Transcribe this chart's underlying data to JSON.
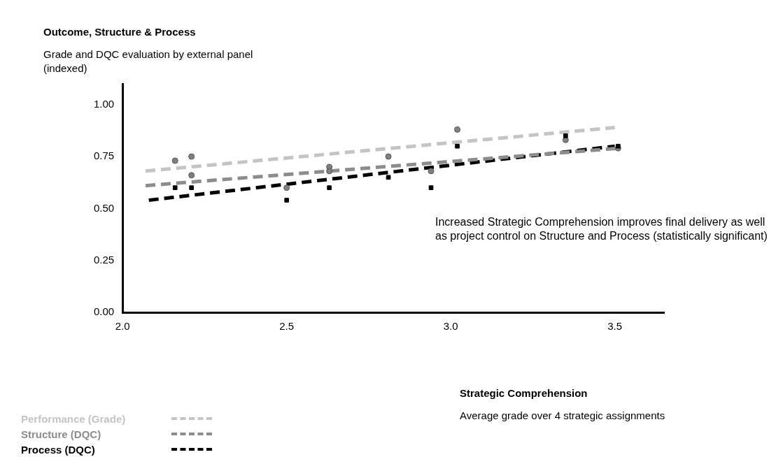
{
  "chart_data": {
    "type": "scatter",
    "title": "Outcome, Structure & Process",
    "ylabel": "Grade and DQC evaluation by external panel\n(indexed)",
    "annotations": [
      "Increased Strategic Comprehension improves final delivery as well as project control on Structure and Process (statistically significant)",
      "Strategic Comprehension",
      "Average grade over 4 strategic assignments"
    ],
    "xlim": [
      2.0,
      3.65
    ],
    "xticks": [
      {
        "value": 2.0,
        "label": "2.0"
      },
      {
        "value": 2.5,
        "label": "2.5"
      },
      {
        "value": 3.0,
        "label": "3.0"
      },
      {
        "value": 3.5,
        "label": "3.5"
      }
    ],
    "ylim": [
      0,
      1.1
    ],
    "yticks": [
      {
        "value": 0,
        "label": "0.00"
      },
      {
        "value": 0.25,
        "label": "0.25"
      },
      {
        "value": 0.5,
        "label": "0.50"
      },
      {
        "value": 0.75,
        "label": "0.75"
      },
      {
        "value": 1,
        "label": "1.00"
      }
    ],
    "grid": false,
    "legend": "bottom left",
    "series": [
      {
        "name": "Performance (Grade)",
        "type": "line",
        "color": "#c4c4c4",
        "line_style": "dashed",
        "marker": "none",
        "x": [
          2.07,
          3.5
        ],
        "values": [
          0.68,
          0.89
        ]
      },
      {
        "name": "Structure (DQC)",
        "type": "line",
        "color": "#8c8c8c",
        "line_style": "dashed",
        "marker": "none",
        "x": [
          2.07,
          3.51
        ],
        "values": [
          0.61,
          0.79
        ]
      },
      {
        "name": "Process (DQC)",
        "type": "line",
        "color": "#000000",
        "line_style": "dashed",
        "marker": "none",
        "x": [
          2.08,
          3.5
        ],
        "values": [
          0.54,
          0.8
        ]
      },
      {
        "color": "#808080",
        "marker": "circle",
        "x": [
          2.16,
          2.21,
          2.21,
          2.5,
          2.63,
          2.63,
          2.81,
          2.94,
          3.02,
          3.35,
          3.51
        ],
        "values": [
          0.73,
          0.75,
          0.66,
          0.6,
          0.7,
          0.68,
          0.75,
          0.68,
          0.88,
          0.83,
          0.79
        ]
      },
      {
        "color": "#000000",
        "marker": "square",
        "x": [
          2.16,
          2.21,
          2.5,
          2.63,
          2.81,
          2.94,
          3.02,
          3.35,
          3.51
        ],
        "values": [
          0.6,
          0.6,
          0.54,
          0.6,
          0.65,
          0.6,
          0.8,
          0.85,
          0.8
        ]
      }
    ]
  }
}
